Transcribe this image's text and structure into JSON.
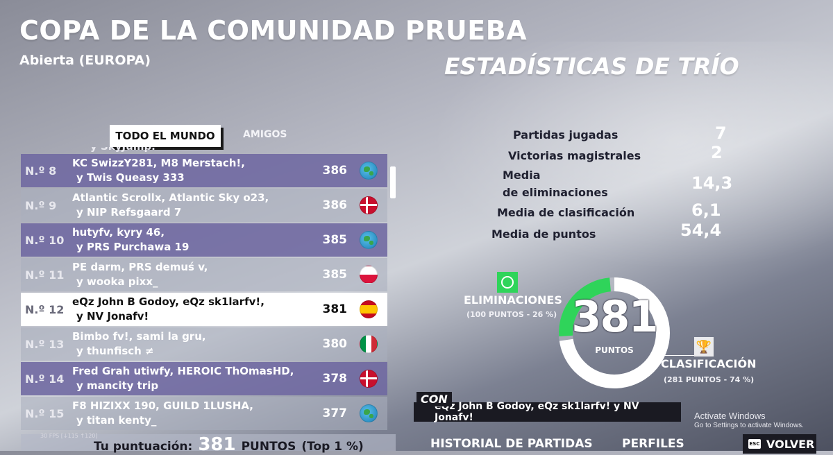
{
  "header": {
    "title": "COPA DE LA COMUNIDAD PRUEBA",
    "subtitle": "Abierta (EUROPA)",
    "stats_heading": "ESTADÍSTICAS DE TRÍO"
  },
  "tabs": [
    {
      "label": "TODO EL MUNDO",
      "active": true
    },
    {
      "label": "AMIGOS",
      "active": false
    }
  ],
  "leaderboard": {
    "partial_top": "y SkyJump.",
    "rows": [
      {
        "rank": "N.º 8",
        "line1": "KC SwizzY281, M8 Merstach!,",
        "line2": "y Twis Queasy 333",
        "score": "386",
        "flag": "globe-icon",
        "style": "dark"
      },
      {
        "rank": "N.º 9",
        "line1": "Atlantic Scrollx, Atlantic Sky o23,",
        "line2": "y NIP Refsgaard 7",
        "score": "386",
        "flag": "denmark-flag-icon",
        "style": "light"
      },
      {
        "rank": "N.º 10",
        "line1": "hutyfv, kyry 46,",
        "line2": "y PRS Purchawa 19",
        "score": "385",
        "flag": "globe-icon",
        "style": "dark"
      },
      {
        "rank": "N.º 11",
        "line1": "PE darm, PRS demuś v,",
        "line2": "y wooka pixx_",
        "score": "385",
        "flag": "poland-flag-icon",
        "style": "light"
      },
      {
        "rank": "N.º 12",
        "line1": "eQz John B Godoy, eQz sk1larfv!,",
        "line2": "y NV Jonafv!",
        "score": "381",
        "flag": "spain-flag-icon",
        "style": "highlight"
      },
      {
        "rank": "N.º 13",
        "line1": "Bimbo fv!, sami la gru,",
        "line2": "y thunfisch ≠",
        "score": "380",
        "flag": "italy-flag-icon",
        "style": "light"
      },
      {
        "rank": "N.º 14",
        "line1": "Fred Grah utiwfy, HEROIC ThOmasHD,",
        "line2": "y mancity trip",
        "score": "378",
        "flag": "denmark-flag-icon",
        "style": "dark"
      },
      {
        "rank": "N.º 15",
        "line1": "F8 HIZIXX 190, GUILD 1LUSHA,",
        "line2": "y titan kenty_",
        "score": "377",
        "flag": "globe-icon",
        "style": "light"
      }
    ]
  },
  "fps_text": "30 FPS [↓115 ↑120]",
  "your_score": {
    "label": "Tu puntuación:",
    "value": "381",
    "unit": "PUNTOS",
    "rank": "(Top 1 %)"
  },
  "stats": [
    {
      "label": "Partidas jugadas",
      "value": "7"
    },
    {
      "label": "Victorias magistrales",
      "value": "2"
    },
    {
      "label": "Media",
      "label2": "de eliminaciones",
      "value": "14,3"
    },
    {
      "label": "Media de clasificación",
      "value": "6,1"
    },
    {
      "label": "Media de puntos",
      "value": "54,4"
    }
  ],
  "score_ring": {
    "total": "381",
    "unit": "PUNTOS",
    "elim_fraction": 0.26,
    "elim_color": "#2fd45a",
    "clas_color": "#ffffff",
    "elim_label": "ELIMINACIONES",
    "elim_sub": "(100 PUNTOS - 26 %)",
    "clas_label": "CLASIFICACIÓN",
    "clas_sub": "(281 PUNTOS - 74 %)"
  },
  "team": {
    "tag": "CON",
    "members": "eQz John B Godoy, eQz sk1larfv! y NV Jonafv!"
  },
  "watermark": {
    "title": "Activate Windows",
    "sub": "Go to Settings to activate Windows."
  },
  "footer": {
    "history": "HISTORIAL DE PARTIDAS",
    "profiles": "PERFILES",
    "esc_key": "ESC",
    "back": "VOLVER"
  }
}
